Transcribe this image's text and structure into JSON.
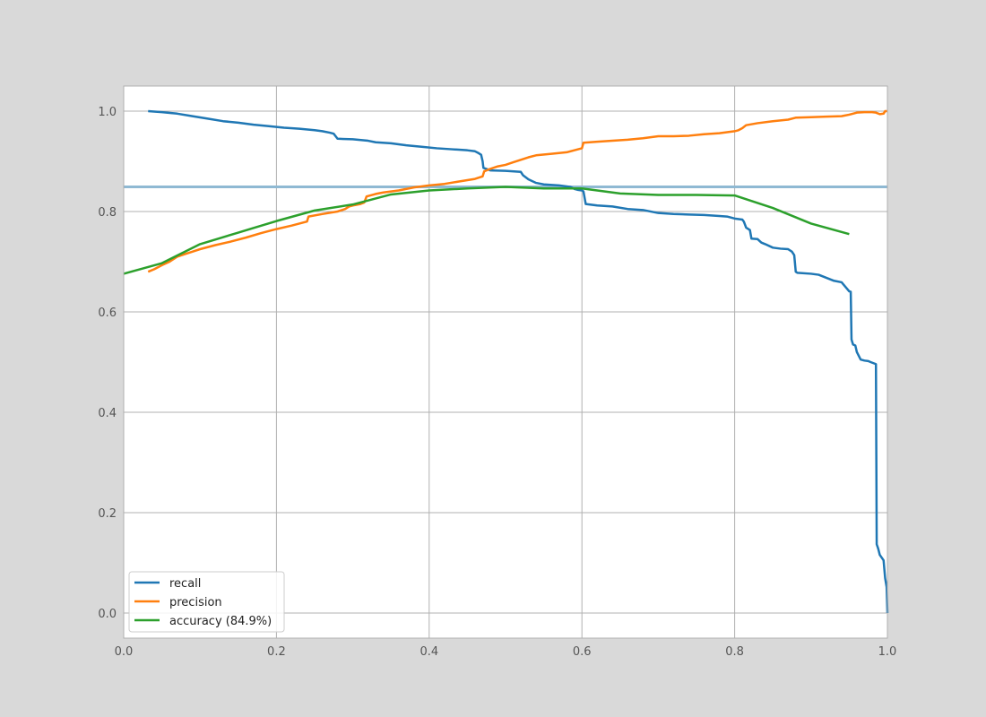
{
  "chart_data": {
    "type": "line",
    "title": "",
    "xlabel": "",
    "ylabel": "",
    "xlim": [
      0.0,
      1.0
    ],
    "ylim": [
      -0.05,
      1.05
    ],
    "grid": true,
    "legend_position": "lower-left",
    "x_ticks": [
      0.0,
      0.2,
      0.4,
      0.6,
      0.8,
      1.0
    ],
    "x_tick_labels": [
      "0.0",
      "0.2",
      "0.4",
      "0.6",
      "0.8",
      "1.0"
    ],
    "y_ticks": [
      0.0,
      0.2,
      0.4,
      0.6,
      0.8,
      1.0
    ],
    "y_tick_labels": [
      "0.0",
      "0.2",
      "0.4",
      "0.6",
      "0.8",
      "1.0"
    ],
    "reference_line": {
      "y": 0.849,
      "color": "#8fb9d3"
    },
    "series": [
      {
        "name": "recall",
        "color": "#1f77b4",
        "x": [
          0.032,
          0.05,
          0.07,
          0.09,
          0.11,
          0.13,
          0.15,
          0.17,
          0.19,
          0.21,
          0.23,
          0.25,
          0.26,
          0.27,
          0.275,
          0.28,
          0.3,
          0.32,
          0.33,
          0.35,
          0.37,
          0.39,
          0.41,
          0.43,
          0.45,
          0.46,
          0.465,
          0.468,
          0.47,
          0.471,
          0.48,
          0.5,
          0.52,
          0.523,
          0.53,
          0.54,
          0.55,
          0.57,
          0.58,
          0.585,
          0.59,
          0.595,
          0.6,
          0.602,
          0.605,
          0.62,
          0.64,
          0.66,
          0.68,
          0.7,
          0.72,
          0.74,
          0.76,
          0.78,
          0.79,
          0.8,
          0.81,
          0.812,
          0.815,
          0.82,
          0.822,
          0.83,
          0.835,
          0.84,
          0.85,
          0.86,
          0.87,
          0.875,
          0.878,
          0.88,
          0.882,
          0.9,
          0.91,
          0.92,
          0.93,
          0.94,
          0.95,
          0.952,
          0.953,
          0.955,
          0.958,
          0.96,
          0.965,
          0.97,
          0.975,
          0.978,
          0.985,
          0.986,
          0.988,
          0.99,
          0.995,
          0.997,
          0.999,
          1.0
        ],
        "y": [
          1.0,
          0.998,
          0.995,
          0.99,
          0.985,
          0.98,
          0.977,
          0.973,
          0.97,
          0.967,
          0.965,
          0.962,
          0.96,
          0.957,
          0.955,
          0.945,
          0.944,
          0.941,
          0.938,
          0.936,
          0.932,
          0.929,
          0.926,
          0.924,
          0.922,
          0.92,
          0.916,
          0.913,
          0.9,
          0.887,
          0.882,
          0.881,
          0.879,
          0.872,
          0.864,
          0.857,
          0.854,
          0.852,
          0.85,
          0.849,
          0.845,
          0.843,
          0.842,
          0.84,
          0.815,
          0.812,
          0.81,
          0.805,
          0.803,
          0.797,
          0.795,
          0.794,
          0.793,
          0.791,
          0.79,
          0.786,
          0.784,
          0.78,
          0.768,
          0.763,
          0.746,
          0.745,
          0.738,
          0.735,
          0.728,
          0.726,
          0.725,
          0.72,
          0.713,
          0.68,
          0.678,
          0.676,
          0.674,
          0.668,
          0.662,
          0.659,
          0.641,
          0.64,
          0.545,
          0.535,
          0.533,
          0.52,
          0.505,
          0.503,
          0.502,
          0.5,
          0.496,
          0.137,
          0.128,
          0.116,
          0.105,
          0.07,
          0.052,
          0.0
        ]
      },
      {
        "name": "precision",
        "color": "#ff7f0e",
        "x": [
          0.032,
          0.04,
          0.05,
          0.06,
          0.07,
          0.08,
          0.09,
          0.1,
          0.12,
          0.14,
          0.16,
          0.18,
          0.2,
          0.22,
          0.24,
          0.242,
          0.26,
          0.28,
          0.29,
          0.295,
          0.3,
          0.31,
          0.315,
          0.318,
          0.33,
          0.34,
          0.36,
          0.38,
          0.4,
          0.42,
          0.44,
          0.46,
          0.47,
          0.472,
          0.48,
          0.49,
          0.5,
          0.51,
          0.52,
          0.53,
          0.54,
          0.56,
          0.58,
          0.59,
          0.6,
          0.602,
          0.62,
          0.64,
          0.66,
          0.68,
          0.7,
          0.72,
          0.74,
          0.76,
          0.78,
          0.8,
          0.805,
          0.81,
          0.815,
          0.83,
          0.85,
          0.87,
          0.88,
          0.9,
          0.92,
          0.94,
          0.95,
          0.96,
          0.97,
          0.98,
          0.985,
          0.99,
          0.995,
          0.997,
          1.0
        ],
        "y": [
          0.68,
          0.685,
          0.693,
          0.7,
          0.71,
          0.715,
          0.72,
          0.725,
          0.733,
          0.74,
          0.748,
          0.757,
          0.765,
          0.772,
          0.78,
          0.79,
          0.795,
          0.8,
          0.805,
          0.81,
          0.812,
          0.815,
          0.818,
          0.83,
          0.835,
          0.838,
          0.842,
          0.848,
          0.852,
          0.855,
          0.86,
          0.865,
          0.87,
          0.88,
          0.885,
          0.89,
          0.893,
          0.898,
          0.903,
          0.908,
          0.912,
          0.915,
          0.918,
          0.922,
          0.926,
          0.937,
          0.939,
          0.941,
          0.943,
          0.946,
          0.95,
          0.95,
          0.951,
          0.954,
          0.956,
          0.96,
          0.962,
          0.966,
          0.972,
          0.976,
          0.98,
          0.983,
          0.987,
          0.988,
          0.989,
          0.99,
          0.993,
          0.997,
          0.998,
          0.998,
          0.997,
          0.994,
          0.995,
          1.0,
          1.0
        ]
      },
      {
        "name": "accuracy (84.9%)",
        "color": "#2ca02c",
        "x": [
          0.0,
          0.05,
          0.1,
          0.15,
          0.2,
          0.25,
          0.3,
          0.35,
          0.4,
          0.45,
          0.5,
          0.55,
          0.6,
          0.65,
          0.7,
          0.75,
          0.8,
          0.85,
          0.9,
          0.95
        ],
        "y": [
          0.676,
          0.697,
          0.735,
          0.758,
          0.781,
          0.802,
          0.814,
          0.834,
          0.842,
          0.846,
          0.849,
          0.846,
          0.846,
          0.836,
          0.833,
          0.833,
          0.832,
          0.807,
          0.776,
          0.755
        ]
      }
    ]
  }
}
